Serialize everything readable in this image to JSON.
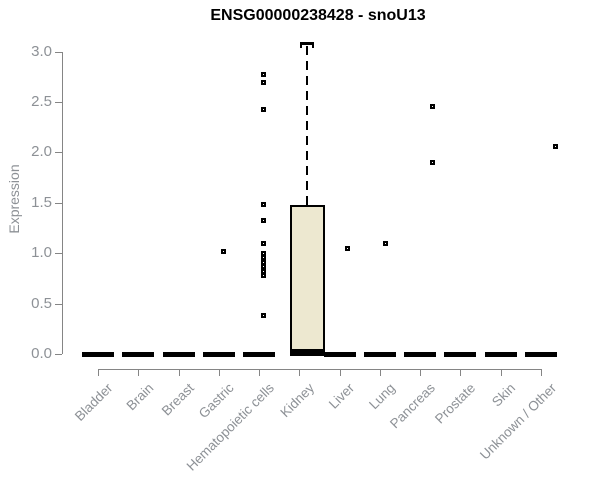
{
  "chart_data": {
    "type": "boxplot",
    "title": "ENSG00000238428 - snoU13",
    "ylabel": "Expression",
    "xlabel": "",
    "ylim": [
      0,
      3
    ],
    "yticks": [
      "0.0",
      "0.5",
      "1.0",
      "1.5",
      "2.0",
      "2.5",
      "3.0"
    ],
    "grid": false,
    "legend": "none",
    "categories": [
      "Bladder",
      "Brain",
      "Breast",
      "Gastric",
      "Hematopoietic cells",
      "Kidney",
      "Liver",
      "Lung",
      "Pancreas",
      "Prostate",
      "Skin",
      "Unknown / Other"
    ],
    "boxes": [
      {
        "category": "Bladder",
        "q1": 0,
        "median": 0,
        "q3": 0,
        "whisker_low": 0,
        "whisker_high": 0,
        "outliers": []
      },
      {
        "category": "Brain",
        "q1": 0,
        "median": 0,
        "q3": 0,
        "whisker_low": 0,
        "whisker_high": 0,
        "outliers": []
      },
      {
        "category": "Breast",
        "q1": 0,
        "median": 0,
        "q3": 0,
        "whisker_low": 0,
        "whisker_high": 0,
        "outliers": []
      },
      {
        "category": "Gastric",
        "q1": 0,
        "median": 0,
        "q3": 0,
        "whisker_low": 0,
        "whisker_high": 0,
        "outliers": [
          1.02
        ]
      },
      {
        "category": "Hematopoietic cells",
        "q1": 0,
        "median": 0,
        "q3": 0,
        "whisker_low": 0,
        "whisker_high": 0,
        "outliers": [
          2.77,
          2.69,
          2.43,
          1.48,
          1.32,
          1.1,
          1.0,
          0.96,
          0.91,
          0.87,
          0.82,
          0.78,
          0.38
        ]
      },
      {
        "category": "Kidney",
        "q1": 0.02,
        "median": 0.02,
        "q3": 1.48,
        "whisker_low": 0,
        "whisker_high": 3.08,
        "outliers": []
      },
      {
        "category": "Liver",
        "q1": 0,
        "median": 0,
        "q3": 0,
        "whisker_low": 0,
        "whisker_high": 0,
        "outliers": [
          1.05
        ]
      },
      {
        "category": "Lung",
        "q1": 0,
        "median": 0,
        "q3": 0,
        "whisker_low": 0,
        "whisker_high": 0,
        "outliers": [
          1.1
        ]
      },
      {
        "category": "Pancreas",
        "q1": 0,
        "median": 0,
        "q3": 0,
        "whisker_low": 0,
        "whisker_high": 0,
        "outliers": [
          2.46,
          1.9
        ]
      },
      {
        "category": "Prostate",
        "q1": 0,
        "median": 0,
        "q3": 0,
        "whisker_low": 0,
        "whisker_high": 0,
        "outliers": []
      },
      {
        "category": "Skin",
        "q1": 0,
        "median": 0,
        "q3": 0,
        "whisker_low": 0,
        "whisker_high": 0,
        "outliers": []
      },
      {
        "category": "Unknown / Other",
        "q1": 0,
        "median": 0,
        "q3": 0,
        "whisker_low": 0,
        "whisker_high": 0,
        "outliers": [
          2.06
        ]
      }
    ],
    "colors": {
      "box_fill": "#EDE8D0",
      "box_border": "#000000",
      "zero_bar": "#000000",
      "axis_line": "#858585",
      "tick_label": "#8D9196",
      "title": "#000000"
    }
  }
}
